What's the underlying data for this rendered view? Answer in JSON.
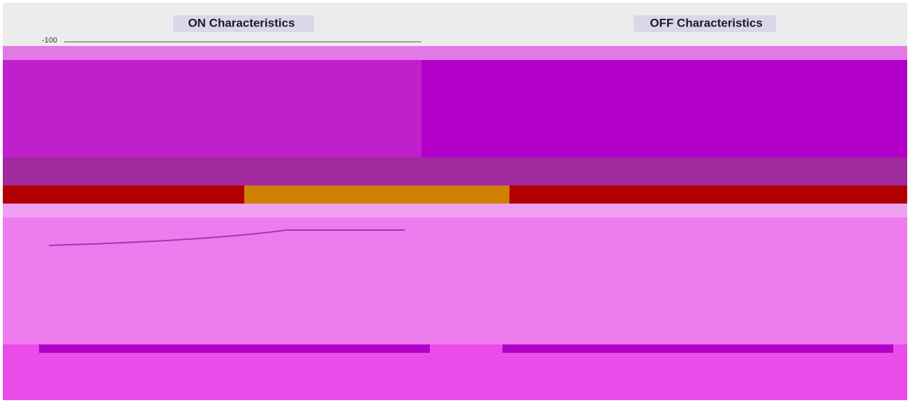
{
  "panels": [
    {
      "title": "ON Characteristics",
      "tick": "-100"
    },
    {
      "title": "OFF Characteristics"
    }
  ]
}
